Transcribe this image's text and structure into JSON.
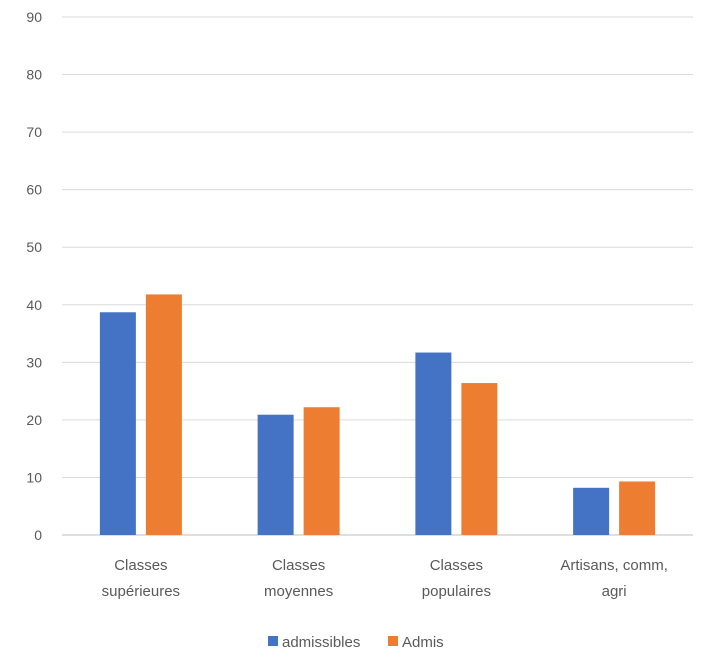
{
  "chart_data": {
    "type": "bar",
    "categories": [
      [
        "Classes",
        "supérieures"
      ],
      [
        "Classes",
        "moyennes"
      ],
      [
        "Classes",
        "populaires"
      ],
      [
        "Artisans, comm,",
        "agri"
      ]
    ],
    "series": [
      {
        "name": "admissibles",
        "color": "#4472C4",
        "values": [
          38.7,
          20.9,
          31.7,
          8.2
        ]
      },
      {
        "name": "Admis",
        "color": "#ED7D31",
        "values": [
          41.8,
          22.2,
          26.4,
          9.3
        ]
      }
    ],
    "yticks": [
      "0",
      "10",
      "20",
      "30",
      "40",
      "50",
      "60",
      "70",
      "80",
      "90"
    ],
    "ylim": [
      0,
      90
    ],
    "grid": true,
    "legend_position": "bottom",
    "title": "",
    "xlabel": "",
    "ylabel": ""
  }
}
